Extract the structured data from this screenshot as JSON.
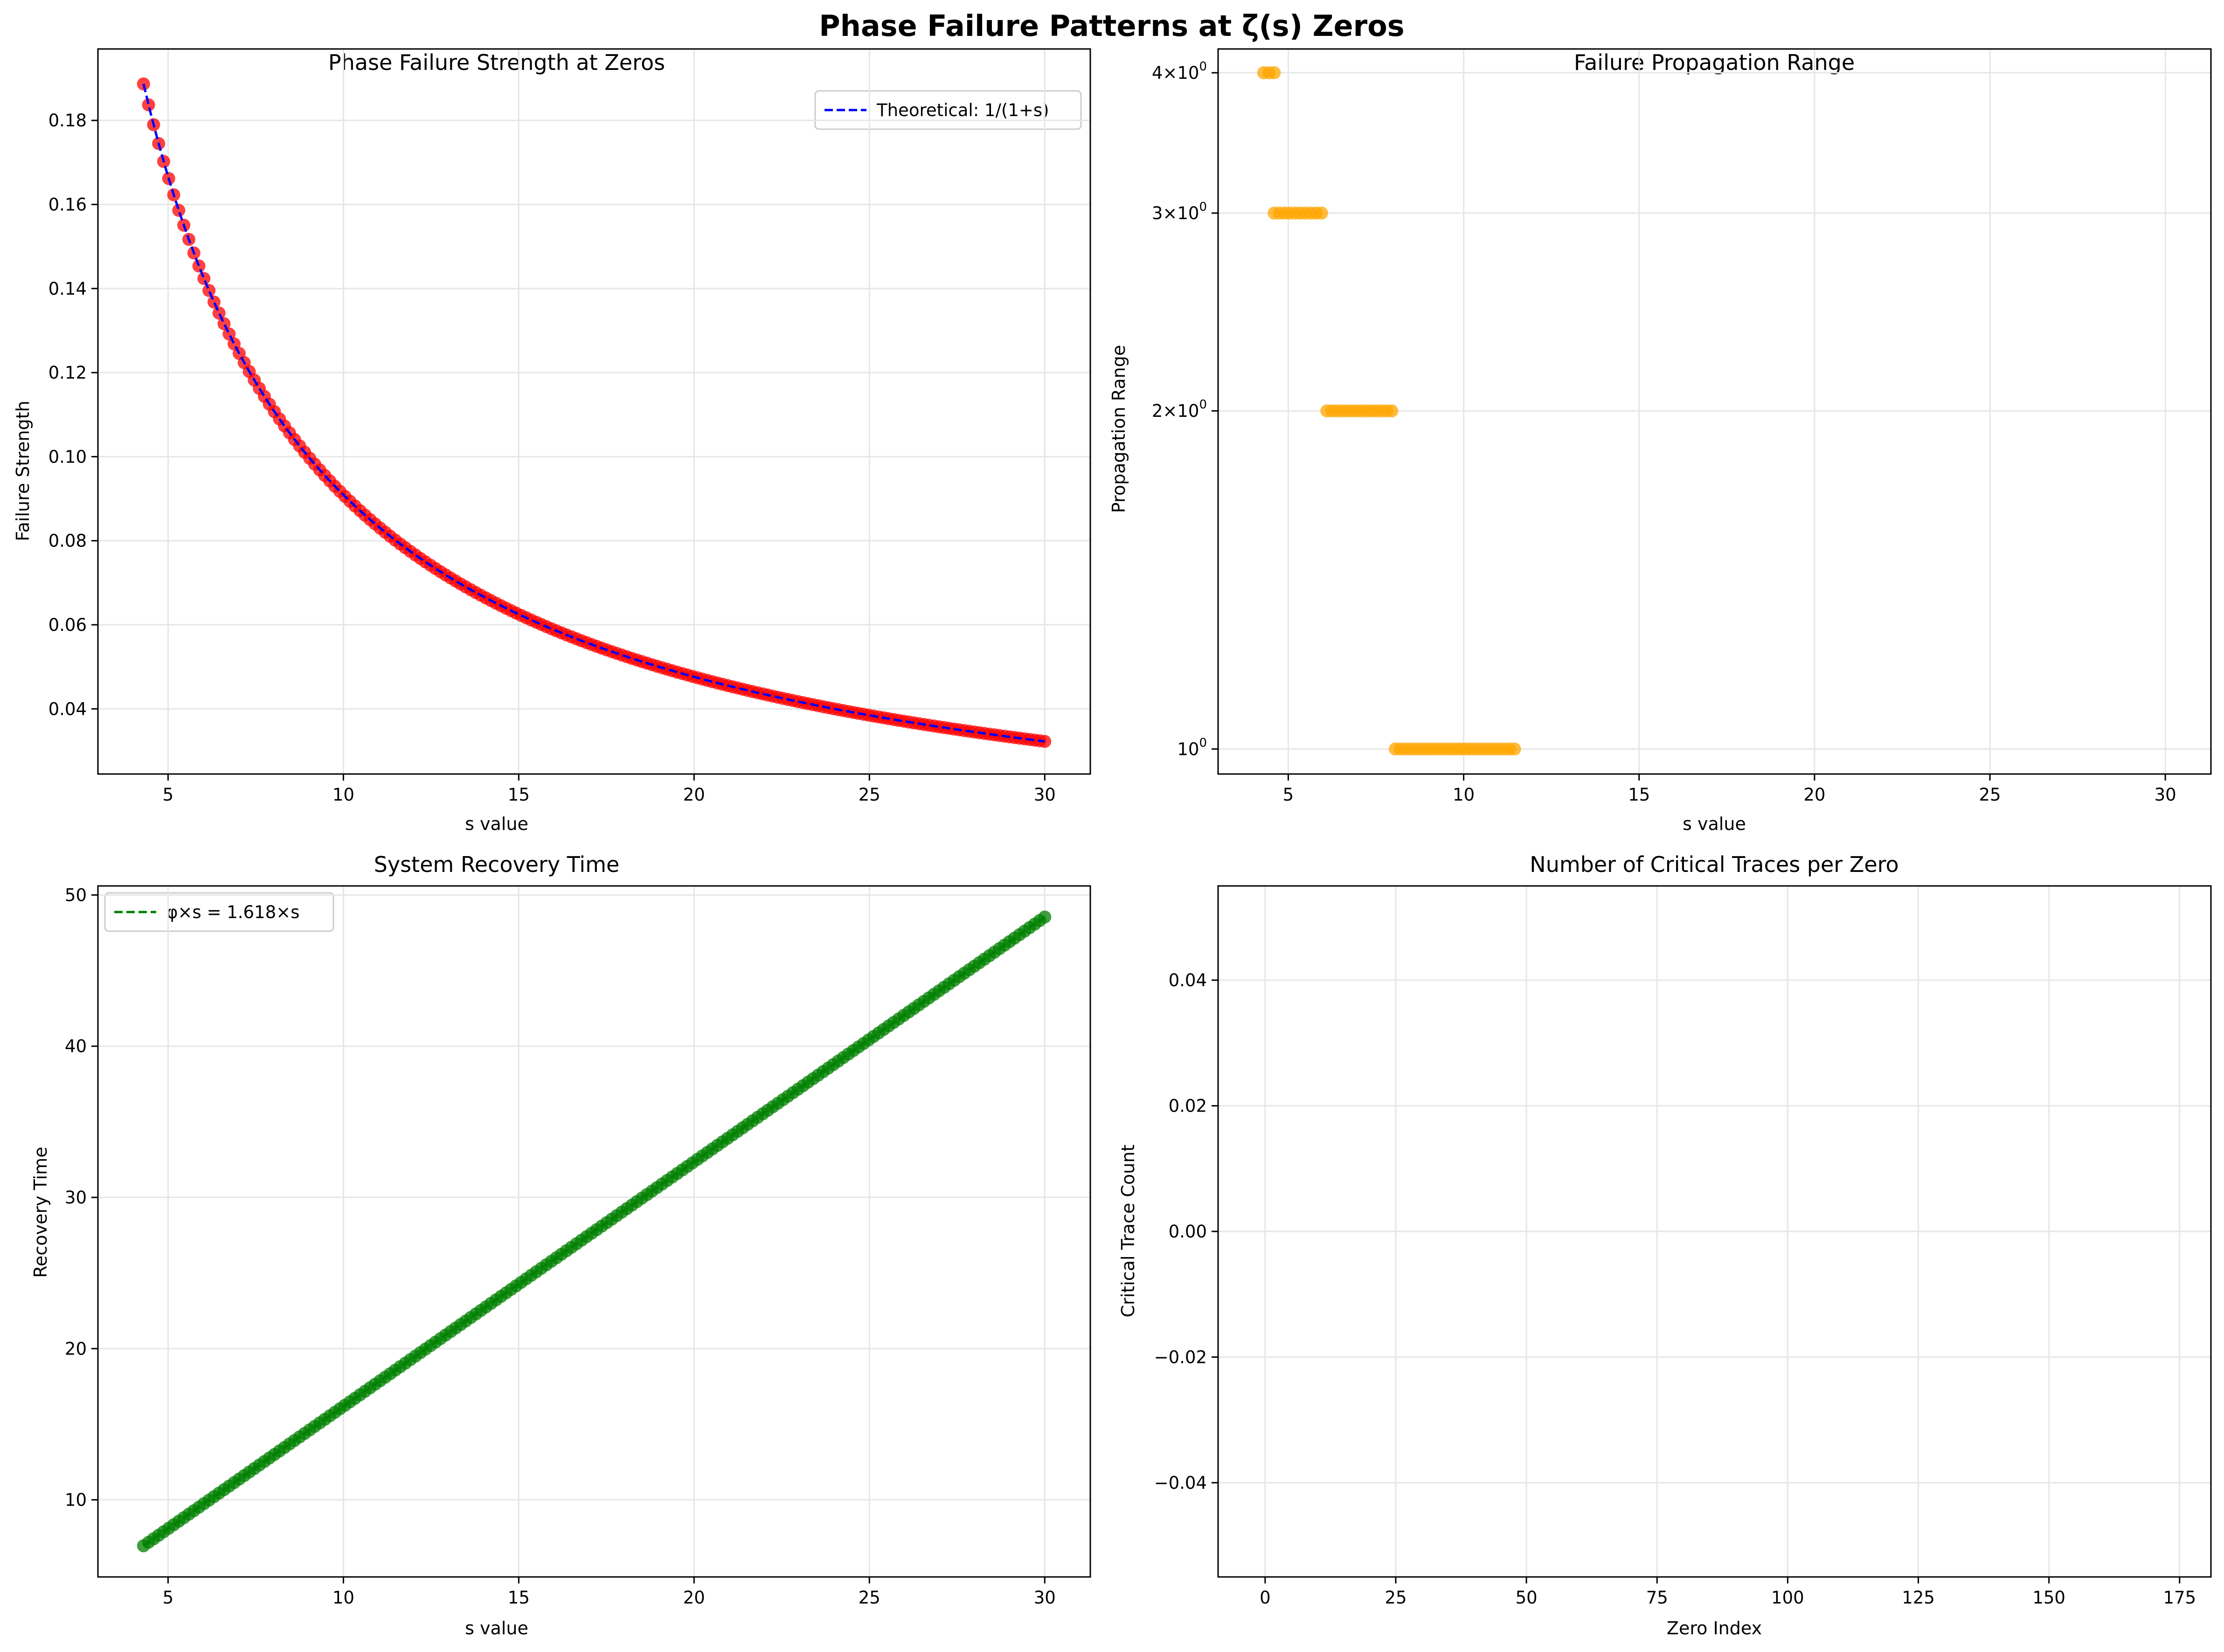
{
  "suptitle": "Phase Failure Patterns at ζ(s) Zeros",
  "colors": {
    "strength_points": "#ff0000",
    "theory_line": "#0000ff",
    "range_points": "#ffa500",
    "recovery_points": "#008000",
    "recovery_line": "#008000",
    "grid": "#e6e6e6"
  },
  "chart_data": [
    {
      "id": "strength",
      "type": "scatter",
      "title": "Phase Failure Strength at Zeros",
      "xlabel": "s value",
      "ylabel": "Failure Strength",
      "xlim": [
        3.0,
        31.3
      ],
      "ylim": [
        0.0245,
        0.197
      ],
      "xticks": [
        5,
        10,
        15,
        20,
        25,
        30
      ],
      "yticks": [
        0.04,
        0.06,
        0.08,
        0.1,
        0.12,
        0.14,
        0.16,
        0.18
      ],
      "ytick_labels": [
        "0.04",
        "0.06",
        "0.08",
        "0.10",
        "0.12",
        "0.14",
        "0.16",
        "0.18"
      ],
      "grid": true,
      "legend": "top-right",
      "points": {
        "x_start": 4.3,
        "x_end": 30.0,
        "count": 180,
        "formula": "1/(1+s)"
      },
      "series": [
        {
          "name": "Theoretical: 1/(1+s)",
          "kind": "dashed-line",
          "x": [
            4.3,
            5,
            6,
            7,
            8,
            10,
            12,
            15,
            20,
            25,
            30
          ],
          "values": [
            0.1887,
            0.1667,
            0.1429,
            0.125,
            0.1111,
            0.0909,
            0.0769,
            0.0625,
            0.0476,
            0.0385,
            0.0323
          ]
        }
      ]
    },
    {
      "id": "range",
      "type": "scatter",
      "title": "Failure Propagation Range",
      "xlabel": "s value",
      "ylabel": "Propagation Range",
      "yscale": "log",
      "xlim": [
        3.0,
        31.3
      ],
      "ylim": [
        0.95,
        4.2
      ],
      "xticks": [
        5,
        10,
        15,
        20,
        25,
        30
      ],
      "yticks": [
        1,
        2,
        3,
        4
      ],
      "ytick_bases": [
        "10",
        "2×10",
        "3×10",
        "4×10"
      ],
      "ytick_exp": "0",
      "grid": true,
      "groups": [
        {
          "value": 4,
          "x_start": 4.3,
          "x_end": 4.6
        },
        {
          "value": 3,
          "x_start": 4.6,
          "x_end": 5.95
        },
        {
          "value": 2,
          "x_start": 6.1,
          "x_end": 7.95
        },
        {
          "value": 1,
          "x_start": 8.05,
          "x_end": 11.45
        }
      ]
    },
    {
      "id": "recovery",
      "type": "scatter",
      "title": "System Recovery Time",
      "xlabel": "s value",
      "ylabel": "Recovery Time",
      "xlim": [
        3.0,
        31.3
      ],
      "ylim": [
        4.9,
        50.6
      ],
      "xticks": [
        5,
        10,
        15,
        20,
        25,
        30
      ],
      "yticks": [
        10,
        20,
        30,
        40,
        50
      ],
      "grid": true,
      "legend": "top-left",
      "points": {
        "x_start": 4.3,
        "x_end": 30.0,
        "count": 180,
        "formula": "1.618*s"
      },
      "series": [
        {
          "name": "φ×s = 1.618×s",
          "kind": "dashed-line",
          "x": [
            4.3,
            30.0
          ],
          "values": [
            6.96,
            48.54
          ]
        }
      ]
    },
    {
      "id": "traces",
      "type": "bar",
      "title": "Number of Critical Traces per Zero",
      "xlabel": "Zero Index",
      "ylabel": "Critical Trace Count",
      "xlim": [
        -9.0,
        181.0
      ],
      "ylim": [
        -0.055,
        0.055
      ],
      "xticks": [
        0,
        25,
        50,
        75,
        100,
        125,
        150,
        175
      ],
      "yticks": [
        -0.04,
        -0.02,
        0.0,
        0.02,
        0.04
      ],
      "ytick_labels": [
        "−0.04",
        "−0.02",
        "0.00",
        "0.02",
        "0.04"
      ],
      "grid": true,
      "values": []
    }
  ]
}
